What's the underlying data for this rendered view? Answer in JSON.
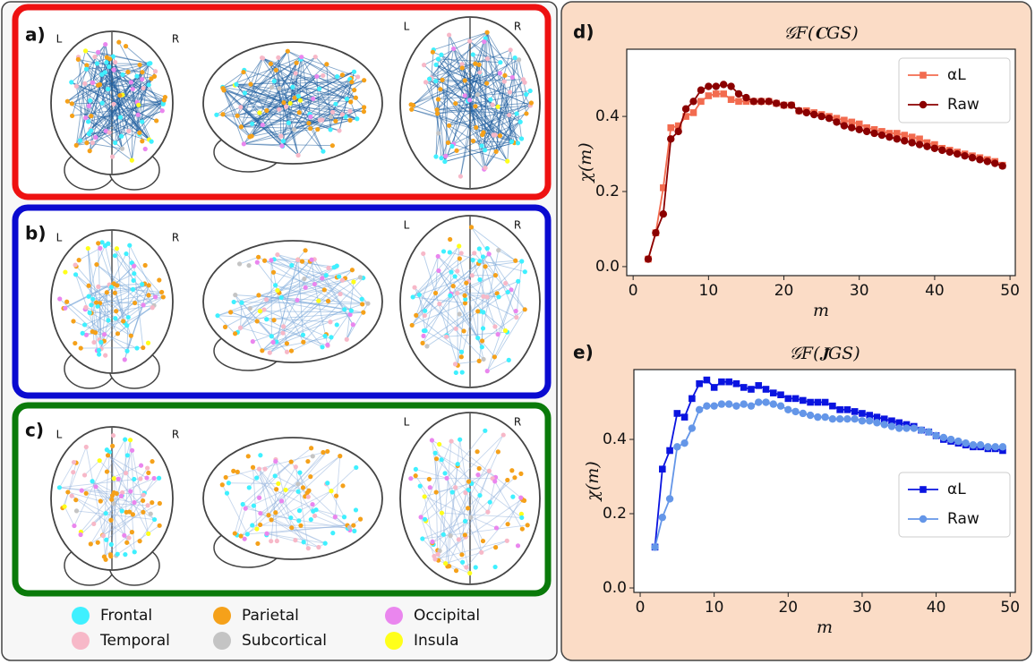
{
  "brain_panels": [
    {
      "label": "a)",
      "hemisphere_labels": [
        "L",
        "R",
        "L",
        "R"
      ]
    },
    {
      "label": "b)",
      "hemisphere_labels": [
        "L",
        "R",
        "L",
        "R"
      ]
    },
    {
      "label": "c)",
      "hemisphere_labels": [
        "L",
        "R",
        "L",
        "R"
      ]
    }
  ],
  "regions": [
    {
      "name": "Frontal",
      "color": "#3ff0ff"
    },
    {
      "name": "Parietal",
      "color": "#f5a11a"
    },
    {
      "name": "Occipital",
      "color": "#ea86ee"
    },
    {
      "name": "Temporal",
      "color": "#f7b8c8"
    },
    {
      "name": "Subcortical",
      "color": "#c4c4c4"
    },
    {
      "name": "Insula",
      "color": "#ffff1a"
    }
  ],
  "chart_data": [
    {
      "type": "line",
      "panel_label": "d)",
      "title": "𝒢F(𝐂GS)",
      "x_label": "m",
      "y_label": "χ(m)",
      "x": [
        2,
        3,
        4,
        5,
        6,
        7,
        8,
        9,
        10,
        11,
        12,
        13,
        14,
        15,
        16,
        17,
        18,
        19,
        20,
        21,
        22,
        23,
        24,
        25,
        26,
        27,
        28,
        29,
        30,
        31,
        32,
        33,
        34,
        35,
        36,
        37,
        38,
        39,
        40,
        41,
        42,
        43,
        44,
        45,
        46,
        47,
        48,
        49
      ],
      "series": [
        {
          "name": "αL",
          "color": "#f26b4f",
          "marker": "square",
          "values": [
            0.02,
            0.09,
            0.21,
            0.37,
            0.375,
            0.4,
            0.41,
            0.44,
            0.455,
            0.46,
            0.46,
            0.445,
            0.44,
            0.44,
            0.44,
            0.44,
            0.44,
            0.435,
            0.43,
            0.43,
            0.415,
            0.415,
            0.41,
            0.405,
            0.4,
            0.395,
            0.39,
            0.385,
            0.38,
            0.37,
            0.365,
            0.36,
            0.355,
            0.355,
            0.35,
            0.345,
            0.34,
            0.33,
            0.325,
            0.315,
            0.31,
            0.305,
            0.3,
            0.295,
            0.29,
            0.285,
            0.28,
            0.27
          ]
        },
        {
          "name": "Raw",
          "color": "#8b0000",
          "marker": "circle",
          "values": [
            0.02,
            0.09,
            0.14,
            0.34,
            0.36,
            0.42,
            0.44,
            0.47,
            0.48,
            0.48,
            0.485,
            0.48,
            0.46,
            0.45,
            0.44,
            0.44,
            0.44,
            0.435,
            0.43,
            0.43,
            0.415,
            0.41,
            0.405,
            0.4,
            0.395,
            0.385,
            0.375,
            0.37,
            0.365,
            0.36,
            0.355,
            0.35,
            0.345,
            0.34,
            0.335,
            0.33,
            0.325,
            0.32,
            0.315,
            0.31,
            0.305,
            0.3,
            0.295,
            0.29,
            0.285,
            0.28,
            0.275,
            0.268
          ]
        }
      ],
      "xlim": [
        -0.85,
        50.7
      ],
      "ylim": [
        -0.024,
        0.579
      ],
      "xticks": [
        0,
        10,
        20,
        30,
        40,
        50
      ],
      "yticks": [
        {
          "value": 0,
          "label": "0.0"
        },
        0.2,
        0.4
      ],
      "grid": false,
      "legend": "upper right"
    },
    {
      "type": "line",
      "panel_label": "e)",
      "title": "𝒢F(𝐉̃GS)",
      "x_label": "m",
      "y_label": "χ(m)",
      "x": [
        2,
        3,
        4,
        5,
        6,
        7,
        8,
        9,
        10,
        11,
        12,
        13,
        14,
        15,
        16,
        17,
        18,
        19,
        20,
        21,
        22,
        23,
        24,
        25,
        26,
        27,
        28,
        29,
        30,
        31,
        32,
        33,
        34,
        35,
        36,
        37,
        38,
        39,
        40,
        41,
        42,
        43,
        44,
        45,
        46,
        47,
        48,
        49
      ],
      "series": [
        {
          "name": "αL",
          "color": "#0a14e0",
          "marker": "square",
          "values": [
            0.11,
            0.32,
            0.37,
            0.47,
            0.46,
            0.51,
            0.55,
            0.56,
            0.54,
            0.555,
            0.555,
            0.55,
            0.54,
            0.535,
            0.545,
            0.535,
            0.525,
            0.52,
            0.51,
            0.51,
            0.505,
            0.5,
            0.5,
            0.5,
            0.49,
            0.48,
            0.48,
            0.475,
            0.47,
            0.465,
            0.46,
            0.455,
            0.45,
            0.445,
            0.44,
            0.435,
            0.425,
            0.42,
            0.41,
            0.4,
            0.395,
            0.39,
            0.385,
            0.38,
            0.38,
            0.375,
            0.375,
            0.37
          ]
        },
        {
          "name": "Raw",
          "color": "#6496e8",
          "marker": "circle",
          "values": [
            0.11,
            0.19,
            0.24,
            0.38,
            0.39,
            0.43,
            0.48,
            0.49,
            0.49,
            0.495,
            0.495,
            0.49,
            0.495,
            0.49,
            0.5,
            0.5,
            0.495,
            0.49,
            0.48,
            0.475,
            0.47,
            0.465,
            0.46,
            0.46,
            0.455,
            0.455,
            0.455,
            0.455,
            0.45,
            0.45,
            0.445,
            0.44,
            0.435,
            0.43,
            0.43,
            0.43,
            0.425,
            0.42,
            0.41,
            0.405,
            0.4,
            0.395,
            0.39,
            0.385,
            0.385,
            0.38,
            0.38,
            0.38
          ]
        }
      ],
      "xlim": [
        -0.85,
        50.7
      ],
      "ylim": [
        -0.012,
        0.588
      ],
      "xticks": [
        0,
        10,
        20,
        30,
        40,
        50
      ],
      "yticks": [
        {
          "value": 0,
          "label": "0.0"
        },
        0.2,
        0.4
      ],
      "grid": false,
      "legend": "lower right"
    }
  ]
}
